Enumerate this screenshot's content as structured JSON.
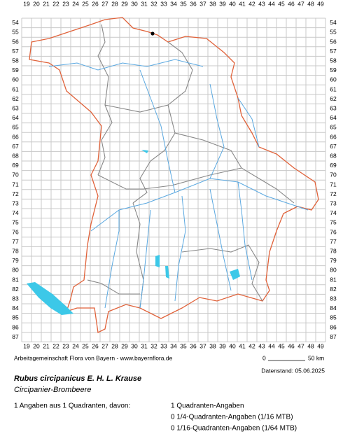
{
  "map": {
    "columns": [
      "19",
      "20",
      "21",
      "22",
      "23",
      "24",
      "25",
      "26",
      "27",
      "28",
      "29",
      "30",
      "31",
      "32",
      "33",
      "34",
      "35",
      "36",
      "37",
      "38",
      "39",
      "40",
      "41",
      "42",
      "43",
      "44",
      "45",
      "46",
      "47",
      "48",
      "49"
    ],
    "rows": [
      "54",
      "55",
      "56",
      "57",
      "58",
      "59",
      "60",
      "61",
      "62",
      "63",
      "64",
      "65",
      "66",
      "67",
      "68",
      "69",
      "70",
      "71",
      "72",
      "73",
      "74",
      "75",
      "76",
      "77",
      "78",
      "79",
      "80",
      "81",
      "82",
      "83",
      "84",
      "85",
      "86",
      "87"
    ],
    "credit": "Arbeitsgemeinschaft Flora von Bayern - www.bayernflora.de",
    "scale_start": "0",
    "scale_end": "50 km",
    "date": "Datenstand: 05.06.2025"
  },
  "species": {
    "name": "Rubus circipanicus E. H. L. Krause",
    "common_name": "Circipanier-Brombeere"
  },
  "stats": {
    "summary": "1 Angaben aus 1 Quadranten, davon:",
    "lines": [
      "1 Quadranten-Angaben",
      "0 1/4-Quadranten-Angaben (1/16 MTB)",
      "0 1/16-Quadranten-Angaben (1/64 MTB)"
    ]
  }
}
